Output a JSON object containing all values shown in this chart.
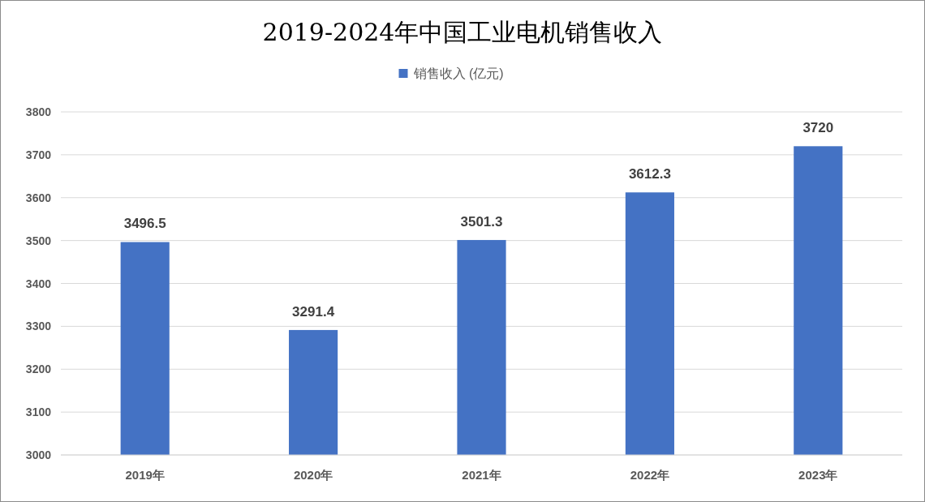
{
  "chart_data": {
    "type": "bar",
    "title": "2019-2024年中国工业电机销售收入",
    "categories": [
      "2019年",
      "2020年",
      "2021年",
      "2022年",
      "2023年"
    ],
    "series": [
      {
        "name": "销售收入 (亿元)",
        "color": "#4472c4",
        "values": [
          3496.5,
          3291.4,
          3501.3,
          3612.3,
          3720
        ]
      }
    ],
    "ylim": [
      3000,
      3800
    ],
    "yticks": [
      3000,
      3100,
      3200,
      3300,
      3400,
      3500,
      3600,
      3700,
      3800
    ],
    "grid": "y",
    "legend": "top",
    "data_labels": true
  }
}
